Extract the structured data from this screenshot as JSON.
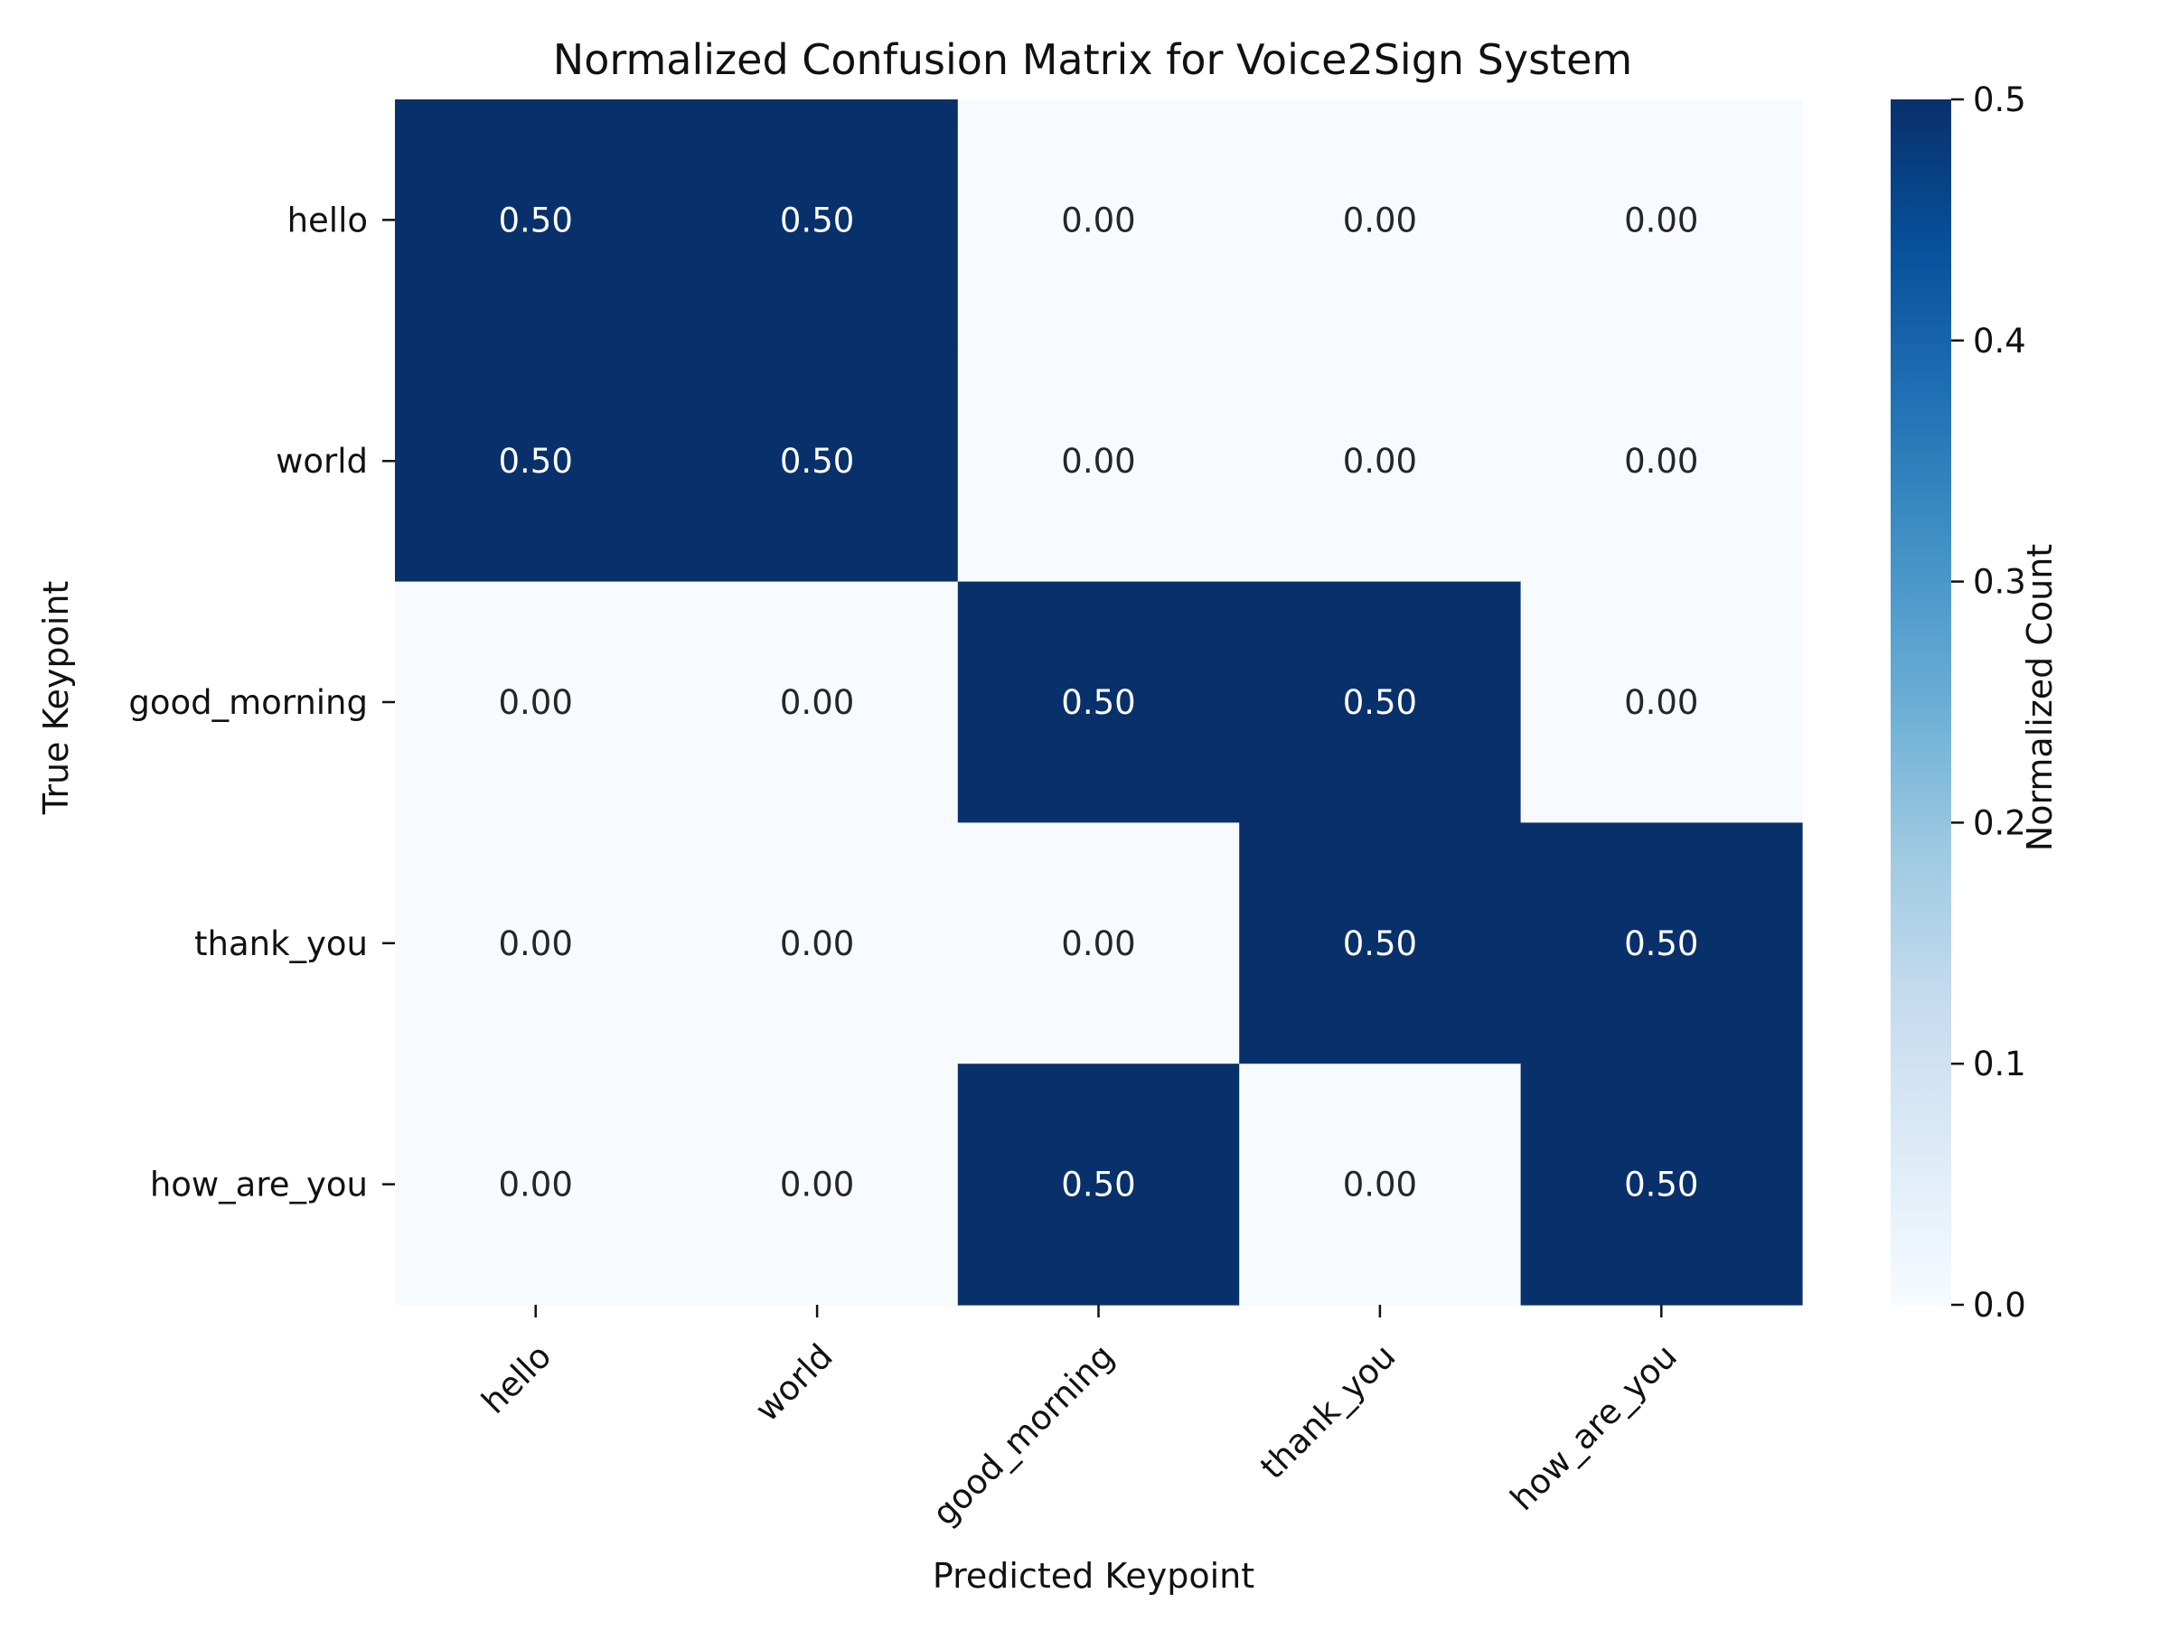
{
  "chart_data": {
    "type": "heatmap",
    "title": "Normalized Confusion Matrix for Voice2Sign System",
    "xlabel": "Predicted Keypoint",
    "ylabel": "True Keypoint",
    "x_categories": [
      "hello",
      "world",
      "good_morning",
      "thank_you",
      "how_are_you"
    ],
    "y_categories": [
      "hello",
      "world",
      "good_morning",
      "thank_you",
      "how_are_you"
    ],
    "values": [
      [
        0.5,
        0.5,
        0.0,
        0.0,
        0.0
      ],
      [
        0.5,
        0.5,
        0.0,
        0.0,
        0.0
      ],
      [
        0.0,
        0.0,
        0.5,
        0.5,
        0.0
      ],
      [
        0.0,
        0.0,
        0.0,
        0.5,
        0.5
      ],
      [
        0.0,
        0.0,
        0.5,
        0.0,
        0.5
      ]
    ],
    "value_format": "0.00",
    "colorbar": {
      "label": "Normalized Count",
      "range": [
        0.0,
        0.5
      ],
      "ticks": [
        0.0,
        0.1,
        0.2,
        0.3,
        0.4,
        0.5
      ],
      "tick_labels": [
        "0.0",
        "0.1",
        "0.2",
        "0.3",
        "0.4",
        "0.5"
      ],
      "colormap": "Blues",
      "low_color": "#f7fbff",
      "high_color": "#08306b"
    },
    "grid": false
  }
}
